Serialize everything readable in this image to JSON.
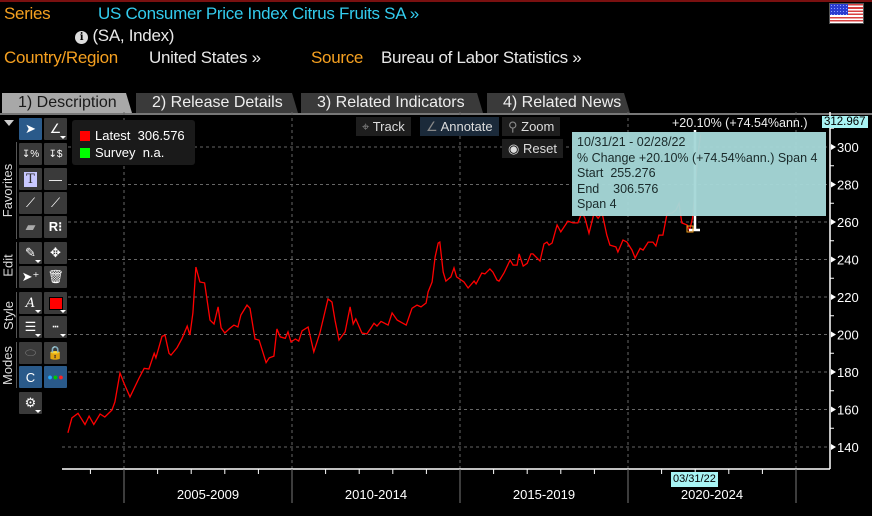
{
  "header": {
    "series_label": "Series",
    "series_title": "US Consumer Price Index Citrus Fruits SA »",
    "info_icon": "info-icon",
    "units": "(SA, Index)",
    "country_label": "Country/Region",
    "country_value": "United States »",
    "source_label": "Source",
    "source_value": "Bureau of Labor Statistics »"
  },
  "tabs": [
    {
      "label": "1) Description"
    },
    {
      "label": "2) Release Details"
    },
    {
      "label": "3) Related Indicators"
    },
    {
      "label": "4) Related News"
    }
  ],
  "toolbar_groups": [
    "Favorites",
    "Edit",
    "Style",
    "Modes"
  ],
  "legend": {
    "latest_label": "Latest",
    "latest_value": "306.576",
    "survey_label": "Survey",
    "survey_value": "n.a.",
    "latest_color": "#ff0000",
    "survey_color": "#00ff00"
  },
  "chart_controls": {
    "track": "Track",
    "annotate": "Annotate",
    "zoom": "Zoom",
    "reset": "Reset"
  },
  "annotation": {
    "label": "+20.10% (+74.54%ann.)",
    "range": "10/31/21 - 02/28/22",
    "pct_change": "% Change +20.10% (+74.54%ann.) Span 4",
    "start": "Start  255.276",
    "end": "End    306.576",
    "span": "Span 4",
    "axis_high": "312.967",
    "cursor_date": "03/31/22"
  },
  "chart_data": {
    "type": "line",
    "title": "US Consumer Price Index Citrus Fruits SA",
    "ylabel": "Index",
    "ylim": [
      130,
      314
    ],
    "yticks": [
      "140",
      "160",
      "180",
      "200",
      "220",
      "240",
      "260",
      "280",
      "300"
    ],
    "x_period_labels": [
      "2005-2009",
      "2010-2014",
      "2015-2019",
      "2020-2024"
    ],
    "grid": true,
    "line_color": "#ff0000",
    "series": [
      {
        "name": "US CPI Citrus Fruits SA",
        "points": [
          [
            2003.33,
            147.6
          ],
          [
            2003.45,
            155.5
          ],
          [
            2003.63,
            158
          ],
          [
            2003.84,
            152
          ],
          [
            2003.96,
            156.5
          ],
          [
            2004.1,
            152
          ],
          [
            2004.29,
            157.6
          ],
          [
            2004.43,
            156
          ],
          [
            2004.64,
            159.7
          ],
          [
            2004.73,
            164
          ],
          [
            2004.88,
            179.5
          ],
          [
            2005.0,
            174
          ],
          [
            2005.18,
            166.7
          ],
          [
            2005.45,
            176.8
          ],
          [
            2005.6,
            182
          ],
          [
            2005.74,
            181.6
          ],
          [
            2005.9,
            190
          ],
          [
            2005.95,
            187.5
          ],
          [
            2006.13,
            199
          ],
          [
            2006.22,
            199.7
          ],
          [
            2006.34,
            190
          ],
          [
            2006.4,
            189
          ],
          [
            2006.58,
            193
          ],
          [
            2006.73,
            198
          ],
          [
            2006.88,
            204.5
          ],
          [
            2006.96,
            199.7
          ],
          [
            2007.05,
            211.5
          ],
          [
            2007.14,
            236
          ],
          [
            2007.26,
            228
          ],
          [
            2007.4,
            227.5
          ],
          [
            2007.56,
            207.7
          ],
          [
            2007.68,
            205.6
          ],
          [
            2007.8,
            214.7
          ],
          [
            2007.89,
            203.5
          ],
          [
            2008.0,
            200.8
          ],
          [
            2008.13,
            203
          ],
          [
            2008.27,
            205
          ],
          [
            2008.39,
            204
          ],
          [
            2008.48,
            210.4
          ],
          [
            2008.66,
            215.7
          ],
          [
            2008.75,
            214
          ],
          [
            2008.9,
            197.6
          ],
          [
            2009.02,
            197
          ],
          [
            2009.23,
            185
          ],
          [
            2009.32,
            187.5
          ],
          [
            2009.46,
            188.5
          ],
          [
            2009.55,
            203
          ],
          [
            2009.65,
            198.7
          ],
          [
            2009.8,
            198
          ],
          [
            2009.88,
            201.4
          ],
          [
            2009.97,
            196
          ],
          [
            2010.1,
            197.6
          ],
          [
            2010.2,
            196.5
          ],
          [
            2010.3,
            202
          ],
          [
            2010.48,
            204
          ],
          [
            2010.65,
            190.7
          ],
          [
            2010.83,
            200.8
          ],
          [
            2011.07,
            219
          ],
          [
            2011.19,
            217.3
          ],
          [
            2011.28,
            207.7
          ],
          [
            2011.4,
            197
          ],
          [
            2011.58,
            201.4
          ],
          [
            2011.73,
            214.7
          ],
          [
            2011.82,
            205.6
          ],
          [
            2011.9,
            208.3
          ],
          [
            2012.08,
            200.8
          ],
          [
            2012.23,
            200.3
          ],
          [
            2012.35,
            203.5
          ],
          [
            2012.44,
            206
          ],
          [
            2012.53,
            204.5
          ],
          [
            2012.65,
            207
          ],
          [
            2012.86,
            205
          ],
          [
            2012.98,
            211.5
          ],
          [
            2013.13,
            207.7
          ],
          [
            2013.4,
            205
          ],
          [
            2013.57,
            214
          ],
          [
            2013.72,
            215.7
          ],
          [
            2013.84,
            214.7
          ],
          [
            2013.99,
            216.8
          ],
          [
            2014.05,
            222.7
          ],
          [
            2014.17,
            228
          ],
          [
            2014.26,
            241.3
          ],
          [
            2014.35,
            248.8
          ],
          [
            2014.4,
            249.3
          ],
          [
            2014.5,
            233.3
          ],
          [
            2014.58,
            228.5
          ],
          [
            2014.73,
            230.7
          ],
          [
            2014.82,
            235.5
          ],
          [
            2014.9,
            230.7
          ],
          [
            2015.12,
            228
          ],
          [
            2015.24,
            224.8
          ],
          [
            2015.42,
            228.5
          ],
          [
            2015.48,
            227
          ],
          [
            2015.65,
            232.8
          ],
          [
            2015.74,
            232.3
          ],
          [
            2015.89,
            235
          ],
          [
            2015.98,
            233.3
          ],
          [
            2016.1,
            229
          ],
          [
            2016.16,
            228.5
          ],
          [
            2016.31,
            232.8
          ],
          [
            2016.49,
            239.7
          ],
          [
            2016.58,
            237
          ],
          [
            2016.7,
            237
          ],
          [
            2016.76,
            243
          ],
          [
            2016.88,
            236.5
          ],
          [
            2017.0,
            238
          ],
          [
            2017.11,
            243
          ],
          [
            2017.17,
            243
          ],
          [
            2017.38,
            239.2
          ],
          [
            2017.5,
            248.3
          ],
          [
            2017.59,
            249.3
          ],
          [
            2017.65,
            247.7
          ],
          [
            2017.74,
            248.8
          ],
          [
            2017.89,
            258.4
          ],
          [
            2018.0,
            254.7
          ],
          [
            2018.21,
            260.5
          ],
          [
            2018.36,
            259.5
          ],
          [
            2018.51,
            259.5
          ],
          [
            2018.63,
            265.3
          ],
          [
            2018.72,
            262
          ],
          [
            2018.84,
            254
          ],
          [
            2018.99,
            264.8
          ],
          [
            2019.11,
            262
          ],
          [
            2019.23,
            264.8
          ],
          [
            2019.37,
            253
          ],
          [
            2019.46,
            247.7
          ],
          [
            2019.64,
            246.7
          ],
          [
            2019.7,
            244
          ],
          [
            2019.85,
            250.4
          ],
          [
            2019.97,
            249.3
          ],
          [
            2020.12,
            245
          ],
          [
            2020.21,
            240.8
          ],
          [
            2020.36,
            246
          ],
          [
            2020.45,
            245
          ],
          [
            2020.6,
            249.3
          ],
          [
            2020.74,
            249.3
          ],
          [
            2020.83,
            247.2
          ],
          [
            2020.92,
            253
          ],
          [
            2021.04,
            253
          ],
          [
            2021.16,
            264.3
          ],
          [
            2021.31,
            264.8
          ],
          [
            2021.43,
            266.4
          ],
          [
            2021.52,
            270
          ],
          [
            2021.6,
            259.5
          ],
          [
            2021.76,
            258.4
          ],
          [
            2021.83,
            255.276
          ],
          [
            2021.92,
            262
          ],
          [
            2022.0,
            278
          ],
          [
            2022.08,
            296
          ],
          [
            2022.16,
            306.576
          ]
        ]
      }
    ]
  }
}
